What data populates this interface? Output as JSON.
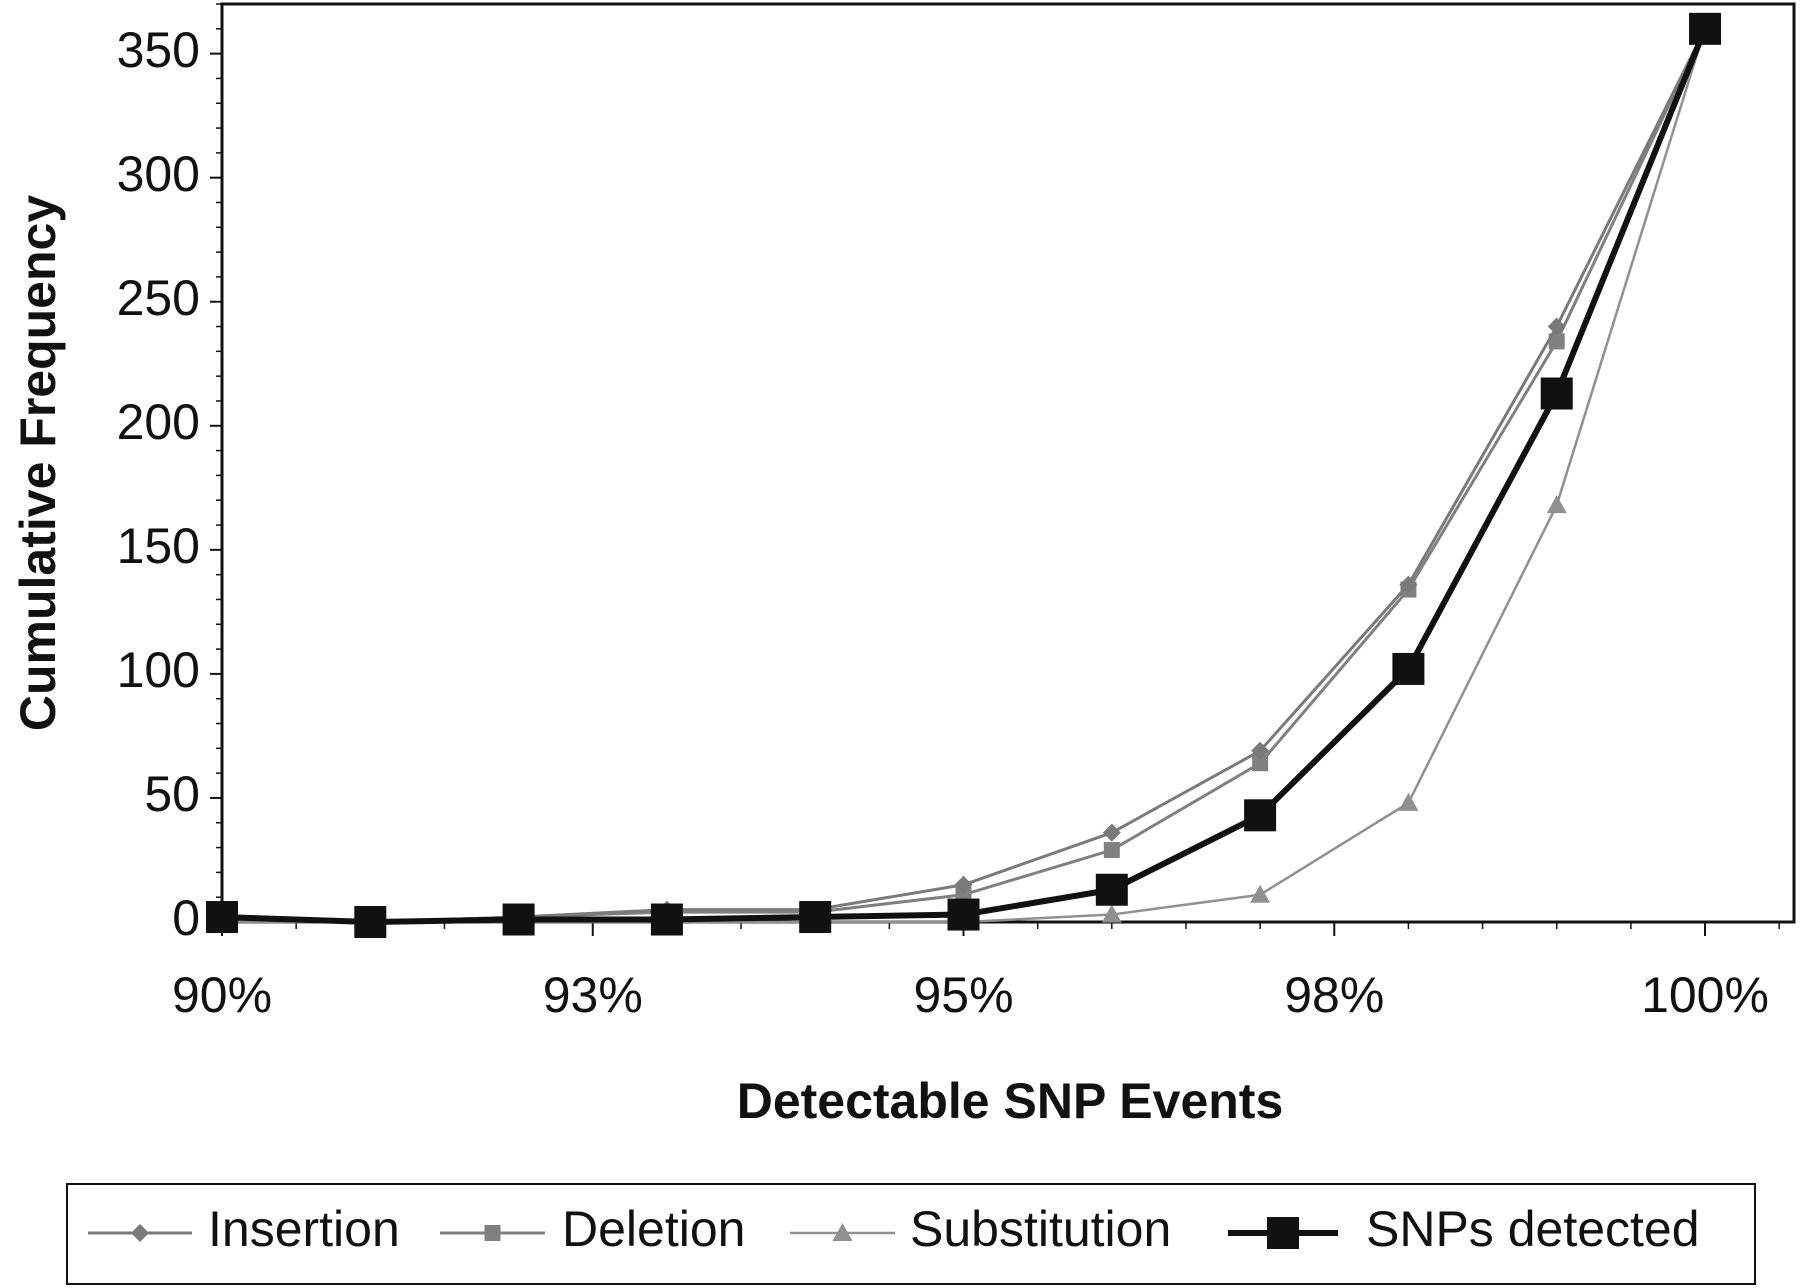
{
  "chart_data": {
    "type": "line",
    "title": "",
    "xlabel": "Detectable SNP Events",
    "ylabel": "Cumulative Frequency",
    "xlim": [
      90,
      100.6
    ],
    "ylim": [
      0,
      370
    ],
    "xticks": [
      90,
      92.5,
      95,
      97.5,
      100
    ],
    "xtick_labels": [
      "90%",
      "93%",
      "95%",
      "98%",
      "100%"
    ],
    "yticks": [
      0,
      50,
      100,
      150,
      200,
      250,
      300,
      350
    ],
    "ytick_labels": [
      "0",
      "50",
      "100",
      "150",
      "200",
      "250",
      "300",
      "350"
    ],
    "grid": false,
    "legend_position": "bottom",
    "series": [
      {
        "name": "Insertion",
        "marker": "diamond",
        "color": "#7a7a7a",
        "x": [
          90,
          91,
          92,
          93,
          94,
          95,
          96,
          97,
          98,
          99,
          100
        ],
        "y": [
          1,
          0,
          2,
          5,
          5,
          15,
          36,
          69,
          136,
          240,
          360
        ]
      },
      {
        "name": "Deletion",
        "marker": "square",
        "color": "#808080",
        "x": [
          90,
          91,
          92,
          93,
          94,
          95,
          96,
          97,
          98,
          99,
          100
        ],
        "y": [
          1,
          0,
          2,
          4,
          4,
          11,
          29,
          64,
          134,
          234,
          360
        ]
      },
      {
        "name": "Substitution",
        "marker": "triangle",
        "color": "#909090",
        "x": [
          90,
          91,
          92,
          93,
          94,
          95,
          96,
          97,
          98,
          99,
          100
        ],
        "y": [
          0,
          0,
          0,
          0,
          0,
          0,
          3,
          11,
          48,
          168,
          360
        ]
      },
      {
        "name": "SNPs detected",
        "marker": "square-large",
        "color": "#111111",
        "x": [
          90,
          91,
          92,
          93,
          94,
          95,
          96,
          97,
          98,
          99,
          100
        ],
        "y": [
          2,
          0,
          1,
          1,
          2,
          3,
          13,
          43,
          102,
          213,
          360
        ]
      }
    ]
  }
}
